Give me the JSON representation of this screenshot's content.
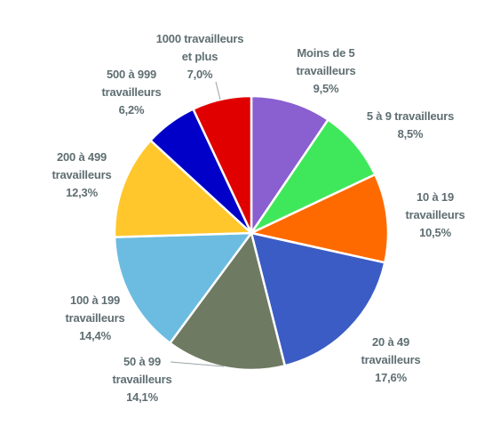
{
  "chart_data": {
    "type": "pie",
    "title": "",
    "slices": [
      {
        "label": [
          "Moins de 5",
          "travailleurs",
          "9,5%"
        ],
        "value": 9.5,
        "color": "#8a5fd0"
      },
      {
        "label": [
          "5 à 9 travailleurs",
          "8,5%"
        ],
        "value": 8.5,
        "color": "#3fe85a"
      },
      {
        "label": [
          "10 à 19",
          "travailleurs",
          "10,5%"
        ],
        "value": 10.5,
        "color": "#ff6a00"
      },
      {
        "label": [
          "20 à 49",
          "travailleurs",
          "17,6%"
        ],
        "value": 17.6,
        "color": "#3b5cc4"
      },
      {
        "label": [
          "50 à 99",
          "travailleurs",
          "14,1%"
        ],
        "value": 14.1,
        "color": "#6f7a62"
      },
      {
        "label": [
          "100 à 199",
          "travailleurs",
          "14,4%"
        ],
        "value": 14.4,
        "color": "#6bbce0"
      },
      {
        "label": [
          "200 à 499",
          "travailleurs",
          "12,3%"
        ],
        "value": 12.3,
        "color": "#ffc72c"
      },
      {
        "label": [
          "500 à 999",
          "travailleurs",
          "6,2%"
        ],
        "value": 6.2,
        "color": "#0000c8"
      },
      {
        "label": [
          "1000 travailleurs",
          "et plus",
          "7,0%"
        ],
        "value": 7.0,
        "color": "#e00000"
      }
    ],
    "legend": "none"
  }
}
